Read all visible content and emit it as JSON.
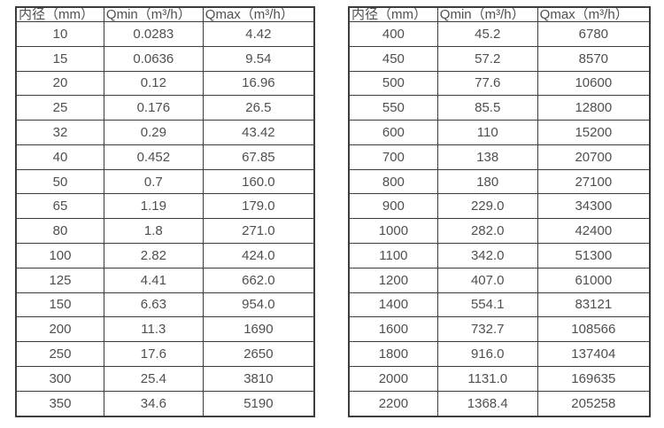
{
  "page": {
    "background_color": "#ffffff",
    "text_color": "#4f4f4f",
    "border_color": "#3d3d3d"
  },
  "chart_data": [
    {
      "type": "table",
      "title": "",
      "columns": [
        "内径（mm）",
        "Qmin（m³/h）",
        "Qmax（m³/h）"
      ],
      "rows": [
        [
          "10",
          "0.0283",
          "4.42"
        ],
        [
          "15",
          "0.0636",
          "9.54"
        ],
        [
          "20",
          "0.12",
          "16.96"
        ],
        [
          "25",
          "0.176",
          "26.5"
        ],
        [
          "32",
          "0.29",
          "43.42"
        ],
        [
          "40",
          "0.452",
          "67.85"
        ],
        [
          "50",
          "0.7",
          "160.0"
        ],
        [
          "65",
          "1.19",
          "179.0"
        ],
        [
          "80",
          "1.8",
          "271.0"
        ],
        [
          "100",
          "2.82",
          "424.0"
        ],
        [
          "125",
          "4.41",
          "662.0"
        ],
        [
          "150",
          "6.63",
          "954.0"
        ],
        [
          "200",
          "11.3",
          "1690"
        ],
        [
          "250",
          "17.6",
          "2650"
        ],
        [
          "300",
          "25.4",
          "3810"
        ],
        [
          "350",
          "34.6",
          "5190"
        ]
      ]
    },
    {
      "type": "table",
      "title": "",
      "columns": [
        "内径（mm）",
        "Qmin（m³/h）",
        "Qmax（m³/h）"
      ],
      "rows": [
        [
          "400",
          "45.2",
          "6780"
        ],
        [
          "450",
          "57.2",
          "8570"
        ],
        [
          "500",
          "77.6",
          "10600"
        ],
        [
          "550",
          "85.5",
          "12800"
        ],
        [
          "600",
          "110",
          "15200"
        ],
        [
          "700",
          "138",
          "20700"
        ],
        [
          "800",
          "180",
          "27100"
        ],
        [
          "900",
          "229.0",
          "34300"
        ],
        [
          "1000",
          "282.0",
          "42400"
        ],
        [
          "1100",
          "342.0",
          "51300"
        ],
        [
          "1200",
          "407.0",
          "61000"
        ],
        [
          "1400",
          "554.1",
          "83121"
        ],
        [
          "1600",
          "732.7",
          "108566"
        ],
        [
          "1800",
          "916.0",
          "137404"
        ],
        [
          "2000",
          "1131.0",
          "169635"
        ],
        [
          "2200",
          "1368.4",
          "205258"
        ]
      ]
    }
  ]
}
